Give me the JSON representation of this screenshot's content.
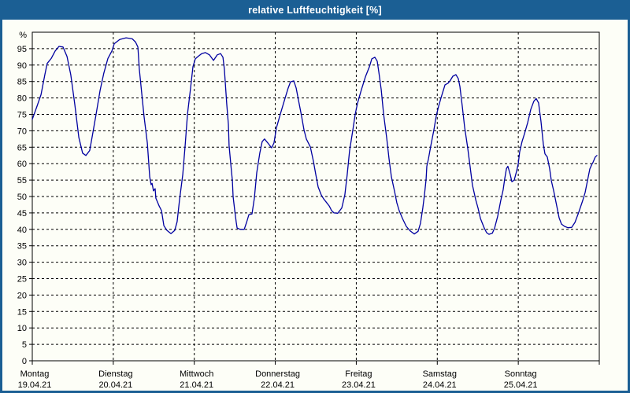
{
  "window": {
    "title": "relative Luftfeuchtigkeit [%]",
    "titlebar_color": "#1b5f94",
    "background_color": "#fdfef7"
  },
  "chart_data": {
    "type": "line",
    "title": "relative Luftfeuchtigkeit [%]",
    "ylabel": "%",
    "ylim": [
      0,
      100
    ],
    "yticks": [
      0,
      5,
      10,
      15,
      20,
      25,
      30,
      35,
      40,
      45,
      50,
      55,
      60,
      65,
      70,
      75,
      80,
      85,
      90,
      95
    ],
    "x_unit": "hours since Monday 00:00",
    "xlim": [
      0,
      168
    ],
    "grid": "dashed",
    "legend": "none",
    "line_color": "#0000a0",
    "days": [
      {
        "label": "Montag",
        "date": "19.04.21"
      },
      {
        "label": "Dienstag",
        "date": "20.04.21"
      },
      {
        "label": "Mittwoch",
        "date": "21.04.21"
      },
      {
        "label": "Donnerstag",
        "date": "22.04.21"
      },
      {
        "label": "Freitag",
        "date": "23.04.21"
      },
      {
        "label": "Samstag",
        "date": "24.04.21"
      },
      {
        "label": "Sonntag",
        "date": "25.04.21"
      }
    ],
    "series": [
      {
        "name": "relative Luftfeuchtigkeit",
        "points": [
          [
            0,
            73.5
          ],
          [
            1.4,
            77.5
          ],
          [
            2.6,
            81
          ],
          [
            3.7,
            87
          ],
          [
            4.4,
            90.5
          ],
          [
            5.6,
            92
          ],
          [
            6.8,
            94.3
          ],
          [
            7.9,
            95.7
          ],
          [
            9.1,
            95.5
          ],
          [
            10.3,
            92.6
          ],
          [
            11.4,
            87
          ],
          [
            12.6,
            78
          ],
          [
            13.8,
            68
          ],
          [
            14.9,
            63.2
          ],
          [
            15.9,
            62.5
          ],
          [
            17,
            64
          ],
          [
            17.7,
            68
          ],
          [
            18.9,
            75
          ],
          [
            20.1,
            82.3
          ],
          [
            21.2,
            87.6
          ],
          [
            22.4,
            92
          ],
          [
            23.6,
            94.3
          ],
          [
            24.3,
            96.5
          ],
          [
            25.9,
            97.8
          ],
          [
            27.8,
            98.3
          ],
          [
            29.6,
            98
          ],
          [
            30.6,
            97
          ],
          [
            31.3,
            95.5
          ],
          [
            31.7,
            88.8
          ],
          [
            32.4,
            81.6
          ],
          [
            33.1,
            74.4
          ],
          [
            34.1,
            66.3
          ],
          [
            34.8,
            56
          ],
          [
            35.2,
            53.6
          ],
          [
            35.5,
            54
          ],
          [
            35.9,
            51.7
          ],
          [
            36.4,
            52.4
          ],
          [
            36.6,
            49.5
          ],
          [
            37.6,
            47.1
          ],
          [
            38.3,
            45.7
          ],
          [
            39,
            41.1
          ],
          [
            39.9,
            39.7
          ],
          [
            41.1,
            38.7
          ],
          [
            42.2,
            39.7
          ],
          [
            42.9,
            42.3
          ],
          [
            43.6,
            48.8
          ],
          [
            44.6,
            56.7
          ],
          [
            45.3,
            65.5
          ],
          [
            46,
            75.1
          ],
          [
            46.9,
            83
          ],
          [
            47.6,
            89.5
          ],
          [
            48.3,
            91.9
          ],
          [
            49,
            92.5
          ],
          [
            50.2,
            93.5
          ],
          [
            51.3,
            93.8
          ],
          [
            52.5,
            93.1
          ],
          [
            53.7,
            91.4
          ],
          [
            54.8,
            93.1
          ],
          [
            55.8,
            93.5
          ],
          [
            56.5,
            92.4
          ],
          [
            56.9,
            88.8
          ],
          [
            57.6,
            78.2
          ],
          [
            58.1,
            72
          ],
          [
            58.3,
            65.5
          ],
          [
            58.8,
            60
          ],
          [
            59.3,
            54.8
          ],
          [
            59.5,
            50
          ],
          [
            60,
            45.7
          ],
          [
            60.4,
            42.3
          ],
          [
            60.7,
            40.4
          ],
          [
            61.6,
            40
          ],
          [
            62.8,
            40
          ],
          [
            63.5,
            42.1
          ],
          [
            64.2,
            44.5
          ],
          [
            65.1,
            44.7
          ],
          [
            65.8,
            49.5
          ],
          [
            66.5,
            57.2
          ],
          [
            67.4,
            63.2
          ],
          [
            68.1,
            66.7
          ],
          [
            68.8,
            67.5
          ],
          [
            69.8,
            66.3
          ],
          [
            70.9,
            64.8
          ],
          [
            71.6,
            66.3
          ],
          [
            72.3,
            70.8
          ],
          [
            73.5,
            75.1
          ],
          [
            74.7,
            79.2
          ],
          [
            75.8,
            83
          ],
          [
            76.5,
            84.9
          ],
          [
            77.5,
            85.2
          ],
          [
            78.2,
            83
          ],
          [
            78.9,
            79.2
          ],
          [
            79.8,
            74.4
          ],
          [
            80.5,
            70.3
          ],
          [
            81.2,
            67.5
          ],
          [
            82.4,
            65.1
          ],
          [
            83.3,
            60.7
          ],
          [
            84,
            56.7
          ],
          [
            84.7,
            52.9
          ],
          [
            85.6,
            50.5
          ],
          [
            86.3,
            49.3
          ],
          [
            87,
            48.4
          ],
          [
            88,
            47.1
          ],
          [
            88.7,
            45.7
          ],
          [
            89.4,
            45
          ],
          [
            90.5,
            44.9
          ],
          [
            91.7,
            46.5
          ],
          [
            92.6,
            50.5
          ],
          [
            93.3,
            56.7
          ],
          [
            94,
            63.9
          ],
          [
            95,
            70.3
          ],
          [
            95.7,
            75.1
          ],
          [
            96.4,
            78.5
          ],
          [
            97.5,
            82.5
          ],
          [
            98.7,
            86.4
          ],
          [
            99.9,
            89.5
          ],
          [
            100.6,
            91.9
          ],
          [
            101.5,
            92.4
          ],
          [
            102.2,
            91.2
          ],
          [
            102.7,
            87.8
          ],
          [
            103.4,
            82.5
          ],
          [
            104.1,
            75.1
          ],
          [
            105,
            67.9
          ],
          [
            105.7,
            61.5
          ],
          [
            106.4,
            56
          ],
          [
            107.3,
            51.7
          ],
          [
            108,
            48.1
          ],
          [
            108.7,
            45.7
          ],
          [
            109.7,
            43.3
          ],
          [
            110.8,
            40.9
          ],
          [
            112,
            39.5
          ],
          [
            113.2,
            38.6
          ],
          [
            114.3,
            39.4
          ],
          [
            115,
            41.8
          ],
          [
            115.7,
            46.5
          ],
          [
            116.2,
            50.5
          ],
          [
            116.7,
            55.3
          ],
          [
            116.9,
            59.2
          ],
          [
            117.4,
            61.5
          ],
          [
            118.1,
            65.5
          ],
          [
            119,
            70.3
          ],
          [
            119.7,
            74.6
          ],
          [
            120.4,
            77.5
          ],
          [
            121.1,
            80
          ],
          [
            122.3,
            84
          ],
          [
            123.2,
            84.5
          ],
          [
            123.9,
            85.4
          ],
          [
            124.6,
            86.6
          ],
          [
            125.5,
            87.1
          ],
          [
            126.2,
            85.9
          ],
          [
            126.7,
            83.5
          ],
          [
            127.4,
            77.5
          ],
          [
            128.1,
            71.1
          ],
          [
            129,
            64.8
          ],
          [
            129.7,
            59.2
          ],
          [
            130.4,
            53.5
          ],
          [
            131.4,
            49
          ],
          [
            132.1,
            46.4
          ],
          [
            132.8,
            43.3
          ],
          [
            133.9,
            40.4
          ],
          [
            134.6,
            39
          ],
          [
            135.3,
            38.5
          ],
          [
            136.3,
            38.8
          ],
          [
            137,
            40.4
          ],
          [
            137.9,
            44
          ],
          [
            138.8,
            48.8
          ],
          [
            139.5,
            52
          ],
          [
            140,
            55.5
          ],
          [
            140.5,
            58.5
          ],
          [
            140.9,
            59.2
          ],
          [
            141.6,
            56.7
          ],
          [
            142.1,
            54.5
          ],
          [
            142.8,
            55
          ],
          [
            143.5,
            57.7
          ],
          [
            144,
            60
          ],
          [
            144.4,
            63.6
          ],
          [
            145.1,
            66.7
          ],
          [
            145.8,
            69
          ],
          [
            146.8,
            72.5
          ],
          [
            147.7,
            76.5
          ],
          [
            148.6,
            79
          ],
          [
            149.3,
            79.8
          ],
          [
            150,
            78.5
          ],
          [
            150.7,
            73
          ],
          [
            151.4,
            66
          ],
          [
            151.9,
            63
          ],
          [
            152.6,
            62
          ],
          [
            153.3,
            58.4
          ],
          [
            153.8,
            54.8
          ],
          [
            154.5,
            51.7
          ],
          [
            155.4,
            47.1
          ],
          [
            156.1,
            43.5
          ],
          [
            156.8,
            41.6
          ],
          [
            157.7,
            40.9
          ],
          [
            158.7,
            40.5
          ],
          [
            159.8,
            40.6
          ],
          [
            160.8,
            42.1
          ],
          [
            161.9,
            45.2
          ],
          [
            163.1,
            48.8
          ],
          [
            163.8,
            51.2
          ],
          [
            164.5,
            54.8
          ],
          [
            165.2,
            58.4
          ],
          [
            165.9,
            60
          ],
          [
            166.1,
            60.3
          ],
          [
            166.8,
            62
          ],
          [
            167.3,
            62.5
          ]
        ]
      }
    ]
  }
}
